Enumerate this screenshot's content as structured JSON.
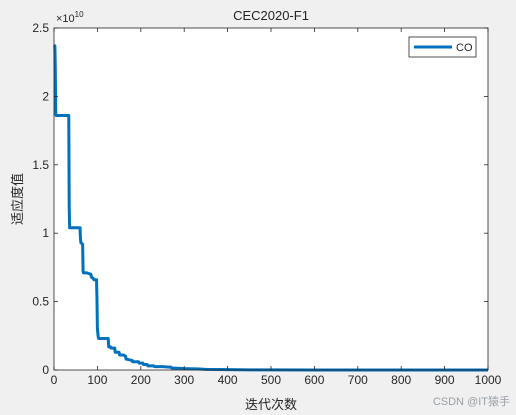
{
  "chart_data": {
    "type": "line",
    "title": "CEC2020-F1",
    "xlabel": "迭代次数",
    "ylabel": "适应度值",
    "xlim": [
      0,
      1000
    ],
    "ylim": [
      0,
      2.5
    ],
    "y_exponent_label": "×10",
    "y_exponent_power": "10",
    "xticks": [
      0,
      100,
      200,
      300,
      400,
      500,
      600,
      700,
      800,
      900,
      1000
    ],
    "yticks": [
      0,
      0.5,
      1,
      1.5,
      2,
      2.5
    ],
    "ytick_labels": [
      "0",
      "0.5",
      "1",
      "1.5",
      "2",
      "2.5"
    ],
    "grid": false,
    "legend_position": "top-right",
    "series": [
      {
        "name": "CO",
        "color": "#0072BD",
        "x": [
          1,
          2,
          3,
          4,
          5,
          30,
          34,
          35,
          36,
          60,
          61,
          62,
          66,
          67,
          68,
          75,
          76,
          85,
          86,
          90,
          92,
          98,
          99,
          100,
          102,
          103,
          104,
          125,
          126,
          130,
          131,
          140,
          141,
          150,
          151,
          160,
          165,
          166,
          180,
          181,
          195,
          196,
          205,
          206,
          215,
          216,
          230,
          231,
          250,
          270,
          271,
          290,
          300,
          330,
          350,
          380,
          400,
          430,
          450,
          500,
          600,
          700,
          800,
          900,
          1000
        ],
        "y": [
          2.36,
          2.37,
          2.2,
          1.87,
          1.86,
          1.86,
          1.86,
          1.2,
          1.04,
          1.04,
          0.96,
          0.93,
          0.92,
          0.72,
          0.71,
          0.71,
          0.71,
          0.7,
          0.68,
          0.67,
          0.66,
          0.66,
          0.52,
          0.3,
          0.24,
          0.23,
          0.23,
          0.23,
          0.17,
          0.17,
          0.16,
          0.16,
          0.13,
          0.13,
          0.11,
          0.11,
          0.1,
          0.08,
          0.07,
          0.06,
          0.06,
          0.05,
          0.05,
          0.04,
          0.04,
          0.03,
          0.03,
          0.025,
          0.025,
          0.02,
          0.015,
          0.012,
          0.01,
          0.008,
          0.005,
          0.004,
          0.003,
          0.002,
          0.001,
          0.0005,
          0.0002,
          0.0001,
          0.0001,
          0.0001,
          0.0001
        ]
      }
    ]
  },
  "watermark": "CSDN @IT猿手"
}
